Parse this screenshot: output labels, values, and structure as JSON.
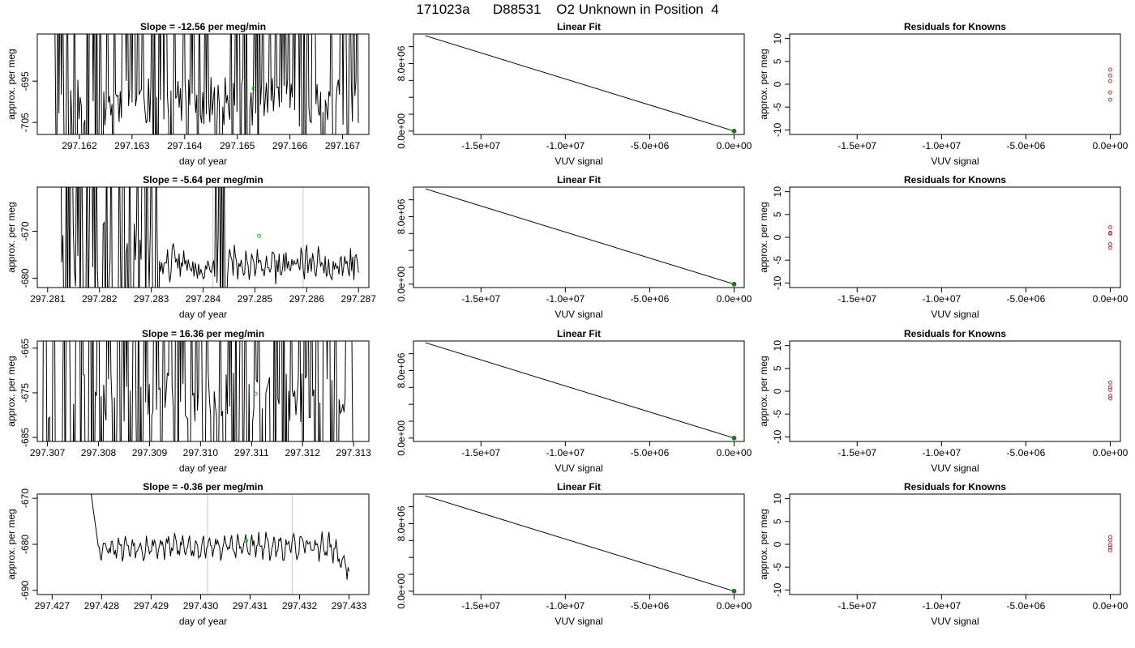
{
  "title": "171023a      D88531    O2 Unknown in Position  4",
  "colors": {
    "line": "#000000",
    "point_current": "#00cc00",
    "residual": "#cc3333",
    "box": "#000000",
    "vline": "#c8c8c8",
    "fit_point": "#1a7a1a"
  },
  "chart_data": [
    {
      "row": 0,
      "col": 0,
      "type": "line",
      "title": "Slope =  -12.56  per meg/min",
      "xlabel": "day of year",
      "ylabel": "approx. per meg",
      "xlim": [
        297.1612,
        297.1675
      ],
      "ylim": [
        -707.9,
        -683.6
      ],
      "xticks": [
        297.162,
        297.163,
        297.164,
        297.165,
        297.166,
        297.167
      ],
      "xtick_labels": [
        "297.162",
        "297.163",
        "297.164",
        "297.165",
        "297.166",
        "297.167"
      ],
      "yticks": [
        -695,
        -705
      ],
      "ytick_labels": [
        "-695",
        "-705"
      ],
      "regime": "spiky",
      "spike_density": 0.45,
      "seed": 11,
      "x_start": 297.1615,
      "x_end": 297.1673,
      "baseline": -700,
      "vlines": [],
      "highlight_point": {
        "x": 297.16531,
        "y": -696.8
      }
    },
    {
      "row": 0,
      "col": 1,
      "type": "line",
      "title": "Linear Fit",
      "xlabel": "VUV signal",
      "ylabel": "",
      "xlim": [
        -19000000,
        600000
      ],
      "ylim": [
        -400000,
        11500000
      ],
      "xticks": [
        -15000000,
        -10000000,
        -5000000,
        0
      ],
      "xtick_labels": [
        "-1.5e+07",
        "-1.0e+07",
        "-5.0e+06",
        "0.0e+00"
      ],
      "yticks": [
        0,
        8000000
      ],
      "ytick_labels": [
        "0.0e+00",
        "8.0e+06"
      ],
      "yminor": [
        2000000,
        4000000,
        6000000,
        10000000
      ],
      "fit_line": [
        [
          -18300000,
          11300000
        ],
        [
          0,
          0
        ]
      ],
      "fit_point": {
        "x": 0,
        "y": 0
      }
    },
    {
      "row": 0,
      "col": 2,
      "type": "scatter",
      "title": "Residuals for Knowns",
      "xlabel": "VUV signal",
      "ylabel": "approx. per meg",
      "xlim": [
        -19000000,
        600000
      ],
      "ylim": [
        -11,
        11
      ],
      "xticks": [
        -15000000,
        -10000000,
        -5000000,
        0
      ],
      "xtick_labels": [
        "-1.5e+07",
        "-1.0e+07",
        "-5.0e+06",
        "0.0e+00"
      ],
      "yticks": [
        -10,
        -5,
        0,
        5,
        10
      ],
      "ytick_labels": [
        "-10",
        "-5",
        "0",
        "5",
        "10"
      ],
      "residuals": [
        3.2,
        1.9,
        0.7,
        -1.8,
        -3.4
      ]
    },
    {
      "row": 1,
      "col": 0,
      "type": "line",
      "title": "Slope =  -5.64  per meg/min",
      "xlabel": "day of year",
      "ylabel": "approx. per meg",
      "xlim": [
        297.2808,
        297.2872
      ],
      "ylim": [
        -682.0,
        -660.6
      ],
      "xticks": [
        297.281,
        297.282,
        297.283,
        297.284,
        297.285,
        297.286,
        297.287
      ],
      "xtick_labels": [
        "297.281",
        "297.282",
        "297.283",
        "297.284",
        "297.285",
        "297.286",
        "297.287"
      ],
      "yticks": [
        -670,
        -680
      ],
      "ytick_labels": [
        "-670",
        "-680"
      ],
      "regime": "mixed",
      "spike_density": 0.25,
      "seed": 23,
      "x_start": 297.28125,
      "x_end": 297.287,
      "baseline": -677,
      "vlines": [
        297.28419,
        297.28593
      ],
      "highlight_point": {
        "x": 297.28508,
        "y": -671.0
      }
    },
    {
      "row": 1,
      "col": 1,
      "type": "line",
      "title": "Linear Fit",
      "xlabel": "VUV signal",
      "ylabel": "",
      "xlim": [
        -19000000,
        600000
      ],
      "ylim": [
        -400000,
        11500000
      ],
      "xticks": [
        -15000000,
        -10000000,
        -5000000,
        0
      ],
      "xtick_labels": [
        "-1.5e+07",
        "-1.0e+07",
        "-5.0e+06",
        "0.0e+00"
      ],
      "yticks": [
        0,
        8000000
      ],
      "ytick_labels": [
        "0.0e+00",
        "8.0e+06"
      ],
      "yminor": [
        2000000,
        4000000,
        6000000,
        10000000
      ],
      "fit_line": [
        [
          -18300000,
          11300000
        ],
        [
          0,
          0
        ]
      ],
      "fit_point": {
        "x": 0,
        "y": 0
      }
    },
    {
      "row": 1,
      "col": 2,
      "type": "scatter",
      "title": "Residuals for Knowns",
      "xlabel": "VUV signal",
      "ylabel": "approx. per meg",
      "xlim": [
        -19000000,
        600000
      ],
      "ylim": [
        -11,
        11
      ],
      "xticks": [
        -15000000,
        -10000000,
        -5000000,
        0
      ],
      "xtick_labels": [
        "-1.5e+07",
        "-1.0e+07",
        "-5.0e+06",
        "0.0e+00"
      ],
      "yticks": [
        -10,
        -5,
        0,
        5,
        10
      ],
      "ytick_labels": [
        "-10",
        "-5",
        "0",
        "5",
        "10"
      ],
      "residuals": [
        2.2,
        1.0,
        0.8,
        -1.5,
        -2.3
      ]
    },
    {
      "row": 2,
      "col": 0,
      "type": "line",
      "title": "Slope =  16.36  per meg/min",
      "xlabel": "day of year",
      "ylabel": "approx. per meg",
      "xlim": [
        297.3068,
        297.3133
      ],
      "ylim": [
        -685.9,
        -663.4
      ],
      "xticks": [
        297.307,
        297.308,
        297.309,
        297.31,
        297.311,
        297.312,
        297.313
      ],
      "xtick_labels": [
        "297.307",
        "297.308",
        "297.309",
        "297.310",
        "297.311",
        "297.312",
        "297.313"
      ],
      "yticks": [
        -665,
        -675,
        -685
      ],
      "ytick_labels": [
        "-665",
        "-675",
        "-685"
      ],
      "regime": "spiky",
      "spike_density": 0.55,
      "seed": 37,
      "x_start": 297.3069,
      "x_end": 297.313,
      "baseline": -676,
      "vlines": [],
      "highlight_point": {
        "x": 297.31108,
        "y": -675.2
      }
    },
    {
      "row": 2,
      "col": 1,
      "type": "line",
      "title": "Linear Fit",
      "xlabel": "VUV signal",
      "ylabel": "",
      "xlim": [
        -19000000,
        600000
      ],
      "ylim": [
        -400000,
        11500000
      ],
      "xticks": [
        -15000000,
        -10000000,
        -5000000,
        0
      ],
      "xtick_labels": [
        "-1.5e+07",
        "-1.0e+07",
        "-5.0e+06",
        "0.0e+00"
      ],
      "yticks": [
        0,
        8000000
      ],
      "ytick_labels": [
        "0.0e+00",
        "8.0e+06"
      ],
      "yminor": [
        2000000,
        4000000,
        6000000,
        10000000
      ],
      "fit_line": [
        [
          -18300000,
          11300000
        ],
        [
          0,
          0
        ]
      ],
      "fit_point": {
        "x": 0,
        "y": 0
      }
    },
    {
      "row": 2,
      "col": 2,
      "type": "scatter",
      "title": "Residuals for Knowns",
      "xlabel": "VUV signal",
      "ylabel": "approx. per meg",
      "xlim": [
        -19000000,
        600000
      ],
      "ylim": [
        -11,
        11
      ],
      "xticks": [
        -15000000,
        -10000000,
        -5000000,
        0
      ],
      "xtick_labels": [
        "-1.5e+07",
        "-1.0e+07",
        "-5.0e+06",
        "0.0e+00"
      ],
      "yticks": [
        -10,
        -5,
        0,
        5,
        10
      ],
      "ytick_labels": [
        "-10",
        "-5",
        "0",
        "5",
        "10"
      ],
      "residuals": [
        1.9,
        0.9,
        0.3,
        -1.0,
        -1.6
      ]
    },
    {
      "row": 3,
      "col": 0,
      "type": "line",
      "title": "Slope =  -0.36  per meg/min",
      "xlabel": "day of year",
      "ylabel": "approx. per meg",
      "xlim": [
        297.4267,
        297.4334
      ],
      "ylim": [
        -690.9,
        -669.1
      ],
      "xticks": [
        297.427,
        297.428,
        297.429,
        297.43,
        297.431,
        297.432,
        297.433
      ],
      "xtick_labels": [
        "297.427",
        "297.428",
        "297.429",
        "297.430",
        "297.431",
        "297.432",
        "297.433"
      ],
      "yticks": [
        -670,
        -680,
        -690
      ],
      "ytick_labels": [
        "-670",
        "-680",
        "-690"
      ],
      "regime": "smooth",
      "spike_density": 0,
      "seed": 53,
      "x_start": 297.42775,
      "x_end": 297.433,
      "baseline": -680.5,
      "vlines": [
        297.43014,
        297.43185
      ],
      "highlight_point": {
        "x": 297.43092,
        "y": -679.2
      }
    },
    {
      "row": 3,
      "col": 1,
      "type": "line",
      "title": "Linear Fit",
      "xlabel": "VUV signal",
      "ylabel": "",
      "xlim": [
        -19000000,
        600000
      ],
      "ylim": [
        -400000,
        11500000
      ],
      "xticks": [
        -15000000,
        -10000000,
        -5000000,
        0
      ],
      "xtick_labels": [
        "-1.5e+07",
        "-1.0e+07",
        "-5.0e+06",
        "0.0e+00"
      ],
      "yticks": [
        0,
        8000000
      ],
      "ytick_labels": [
        "0.0e+00",
        "8.0e+06"
      ],
      "yminor": [
        2000000,
        4000000,
        6000000,
        10000000
      ],
      "fit_line": [
        [
          -18300000,
          11300000
        ],
        [
          0,
          0
        ]
      ],
      "fit_point": {
        "x": 0,
        "y": 0
      }
    },
    {
      "row": 3,
      "col": 2,
      "type": "scatter",
      "title": "Residuals for Knowns",
      "xlabel": "VUV signal",
      "ylabel": "approx. per meg",
      "xlim": [
        -19000000,
        600000
      ],
      "ylim": [
        -11,
        11
      ],
      "xticks": [
        -15000000,
        -10000000,
        -5000000,
        0
      ],
      "xtick_labels": [
        "-1.5e+07",
        "-1.0e+07",
        "-5.0e+06",
        "0.0e+00"
      ],
      "yticks": [
        -10,
        -5,
        0,
        5,
        10
      ],
      "ytick_labels": [
        "-10",
        "-5",
        "0",
        "5",
        "10"
      ],
      "residuals": [
        1.6,
        0.9,
        -0.1,
        -0.7,
        -1.3
      ]
    }
  ]
}
